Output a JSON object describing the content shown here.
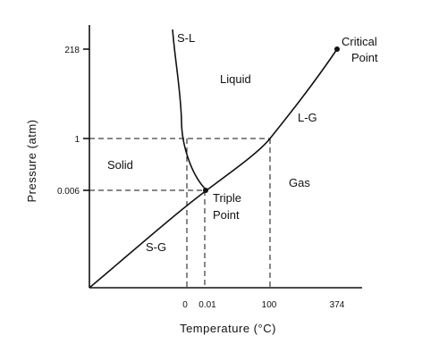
{
  "axes": {
    "x_label": "Temperature (°C)",
    "y_label": "Pressure (atm)",
    "x_ticks": [
      "0",
      "0.01",
      "100",
      "374"
    ],
    "y_ticks": [
      "218",
      "1",
      "0.006"
    ]
  },
  "regions": {
    "solid": "Solid",
    "liquid": "Liquid",
    "gas": "Gas"
  },
  "curves": {
    "solid_liquid": "S-L",
    "liquid_gas": "L-G",
    "solid_gas": "S-G"
  },
  "points": {
    "triple_line1": "Triple",
    "triple_line2": "Point",
    "critical_line1": "Critical",
    "critical_line2": "Point"
  },
  "colors": {
    "ink": "#111111",
    "background": "#ffffff"
  }
}
